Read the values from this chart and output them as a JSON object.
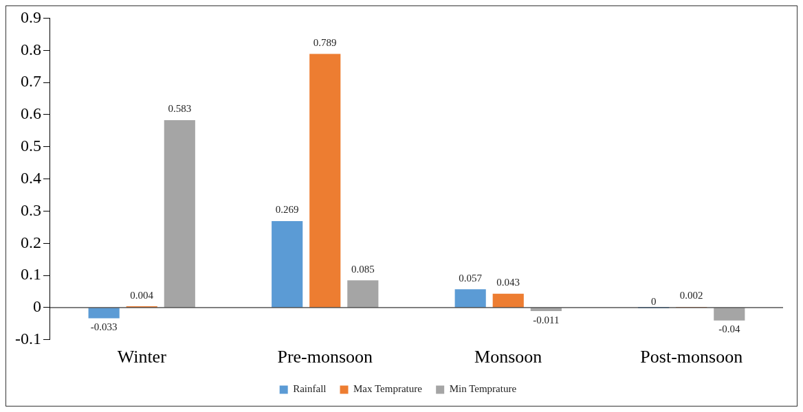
{
  "chart_data": {
    "type": "bar",
    "categories": [
      "Winter",
      "Pre-monsoon",
      "Monsoon",
      "Post-monsoon"
    ],
    "series": [
      {
        "name": "Rainfall",
        "color": "#5b9bd5",
        "values": [
          -0.033,
          0.269,
          0.057,
          0
        ]
      },
      {
        "name": "Max Temprature",
        "color": "#ed7d31",
        "values": [
          0.004,
          0.789,
          0.043,
          0.002
        ]
      },
      {
        "name": "Min Temprature",
        "color": "#a5a5a5",
        "values": [
          0.583,
          0.085,
          -0.011,
          -0.04
        ]
      }
    ],
    "ylim": [
      -0.1,
      0.9
    ],
    "yticks": [
      -0.1,
      0,
      0.1,
      0.2,
      0.3,
      0.4,
      0.5,
      0.6,
      0.7,
      0.8,
      0.9
    ],
    "data_labels": true,
    "legend": "bottom",
    "grid": false
  }
}
